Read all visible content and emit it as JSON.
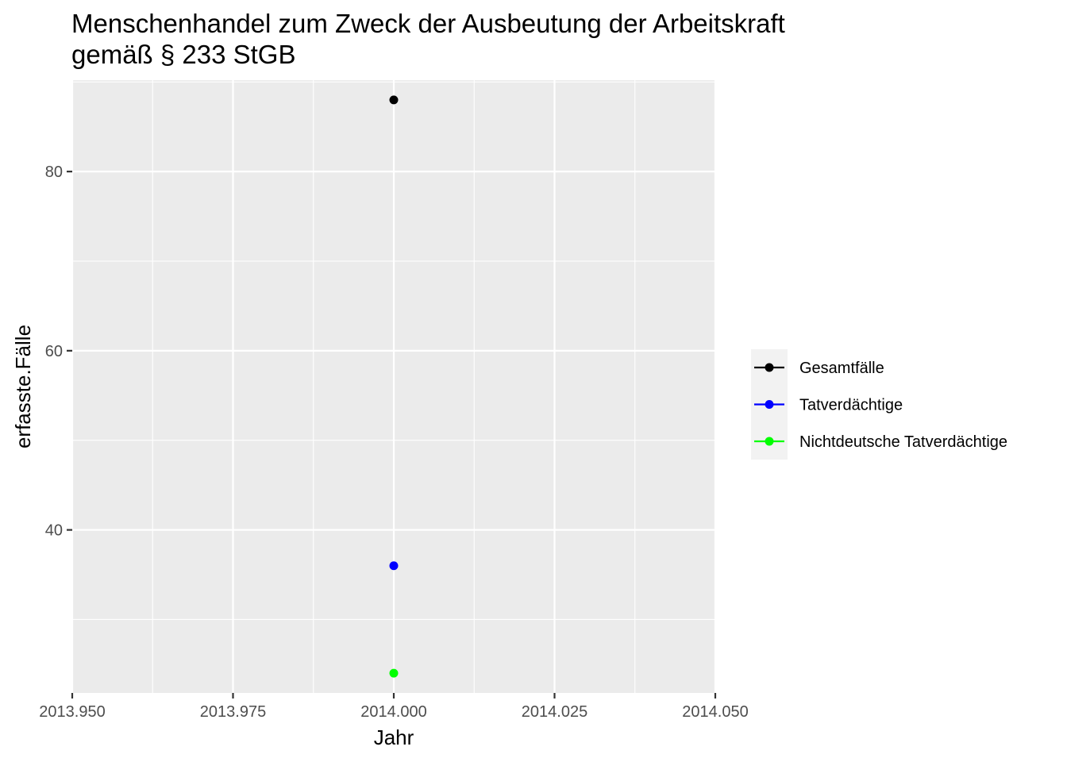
{
  "chart_data": {
    "type": "line",
    "title": [
      "Menschenhandel zum Zweck der Ausbeutung der Arbeitskraft",
      "gemäß § 233 StGB"
    ],
    "xlabel": "Jahr",
    "ylabel": "erfasste.Fälle",
    "xlim": [
      2013.95,
      2014.05
    ],
    "ylim": [
      21.8,
      90.2
    ],
    "x_ticks": [
      2013.95,
      2013.975,
      2014.0,
      2014.025,
      2014.05
    ],
    "x_tick_labels": [
      "2013.950",
      "2013.975",
      "2014.000",
      "2014.025",
      "2014.050"
    ],
    "y_ticks": [
      40,
      60,
      80
    ],
    "y_tick_labels": [
      "40",
      "60",
      "80"
    ],
    "grid": true,
    "legend_position": "right",
    "series": [
      {
        "name": "Gesamtfälle",
        "color": "#000000",
        "x": [
          2014.0
        ],
        "y": [
          88
        ]
      },
      {
        "name": "Tatverdächtige",
        "color": "#0000ff",
        "x": [
          2014.0
        ],
        "y": [
          36
        ]
      },
      {
        "name": "Nichtdeutsche Tatverdächtige",
        "color": "#00ff00",
        "x": [
          2014.0
        ],
        "y": [
          24
        ]
      }
    ]
  }
}
